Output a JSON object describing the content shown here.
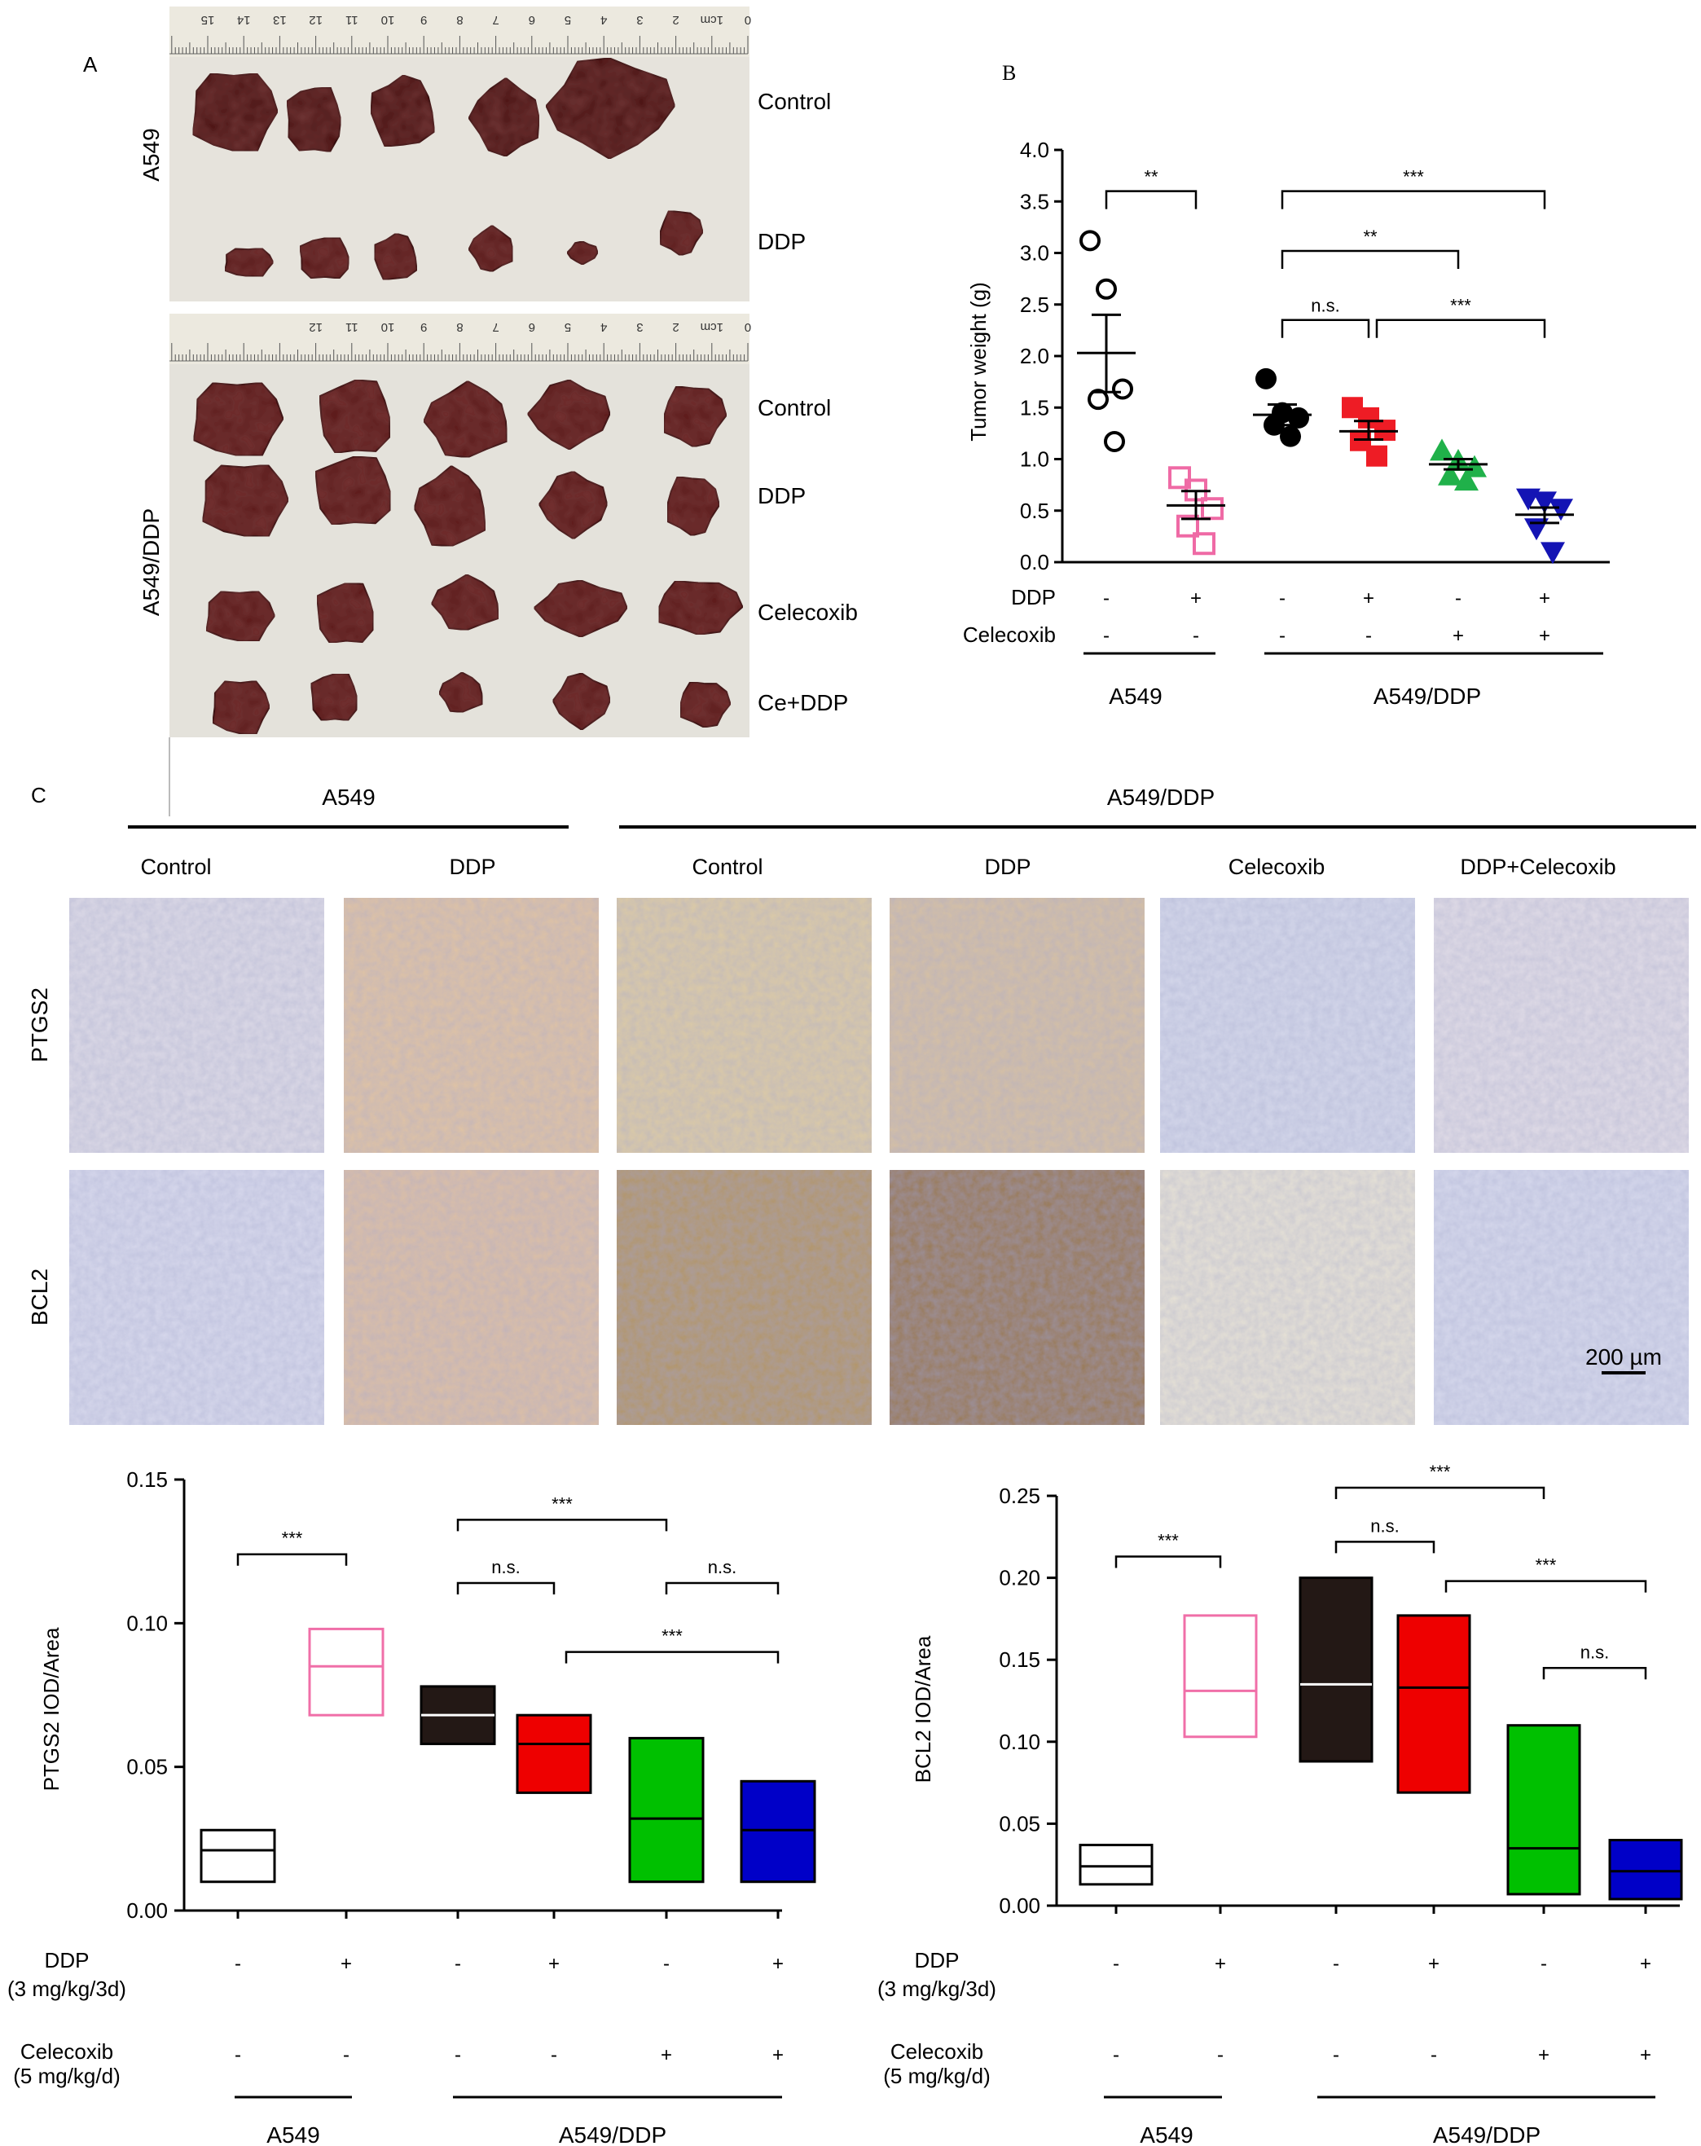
{
  "panels": {
    "a": "A",
    "b": "B",
    "c": "C"
  },
  "photos": {
    "a549_label": "A549",
    "a549ddp_label": "A549/DDP",
    "a549_rows": [
      "Control",
      "DDP"
    ],
    "a549ddp_rows": [
      "Control",
      "DDP",
      "Celecoxib",
      "Ce+DDP"
    ],
    "ruler_top": [
      "15",
      "14",
      "13",
      "12",
      "11",
      "10",
      "9",
      "8",
      "7",
      "6",
      "5",
      "4",
      "3",
      "2",
      "1cm",
      "0"
    ],
    "ruler_bottom": [
      "12",
      "11",
      "10",
      "9",
      "8",
      "7",
      "6",
      "5",
      "4",
      "3",
      "2",
      "1cm",
      "0"
    ]
  },
  "ihc": {
    "group_labels": [
      "A549",
      "A549/DDP"
    ],
    "columns": [
      "Control",
      "DDP",
      "Control",
      "DDP",
      "Celecoxib",
      "DDP+Celecoxib"
    ],
    "rows": [
      "PTGS2",
      "BCL2"
    ],
    "scale_bar": "200 µm"
  },
  "chart_data": [
    {
      "type": "scatter",
      "panel": "B",
      "ylabel": "Tumor weight (g)",
      "ylim": [
        0,
        4.0
      ],
      "yticks": [
        "0.0",
        "0.5",
        "1.0",
        "1.5",
        "2.0",
        "2.5",
        "3.0",
        "3.5",
        "4.0"
      ],
      "condition_rows": [
        {
          "label": "DDP",
          "values": [
            "-",
            "+",
            "-",
            "+",
            "-",
            "+"
          ]
        },
        {
          "label": "Celecoxib",
          "values": [
            "-",
            "-",
            "-",
            "-",
            "+",
            "+"
          ]
        }
      ],
      "groups": [
        {
          "label": "A549",
          "span": [
            0,
            1
          ]
        },
        {
          "label": "A549/DDP",
          "span": [
            2,
            5
          ]
        }
      ],
      "series": [
        {
          "marker": "open-circle",
          "color": "#000000",
          "points": [
            3.12,
            2.65,
            1.68,
            1.58,
            1.17
          ],
          "mean": 2.03,
          "sem_low": 1.65,
          "sem_high": 2.4
        },
        {
          "marker": "open-square",
          "color": "#ef6aa5",
          "points": [
            0.82,
            0.7,
            0.52,
            0.35,
            0.18
          ],
          "mean": 0.55,
          "sem_low": 0.42,
          "sem_high": 0.69
        },
        {
          "marker": "filled-circle",
          "color": "#000000",
          "points": [
            1.78,
            1.45,
            1.4,
            1.33,
            1.22
          ],
          "mean": 1.43,
          "sem_low": 1.33,
          "sem_high": 1.53
        },
        {
          "marker": "filled-square",
          "color": "#ee1c25",
          "points": [
            1.5,
            1.4,
            1.28,
            1.18,
            1.03
          ],
          "mean": 1.27,
          "sem_low": 1.19,
          "sem_high": 1.37
        },
        {
          "marker": "filled-triangle",
          "color": "#20b14a",
          "points": [
            1.08,
            0.98,
            0.92,
            0.84,
            0.79
          ],
          "mean": 0.95,
          "sem_low": 0.9,
          "sem_high": 1.0
        },
        {
          "marker": "filled-triangle-down",
          "color": "#1414b4",
          "points": [
            0.62,
            0.59,
            0.52,
            0.33,
            0.1
          ],
          "mean": 0.46,
          "sem_low": 0.38,
          "sem_high": 0.53
        }
      ],
      "brackets": [
        {
          "from": 0,
          "to": 1,
          "y": 3.6,
          "label": "**"
        },
        {
          "from": 2,
          "to": 5,
          "y": 3.6,
          "label": "***"
        },
        {
          "from": 2,
          "to": 4,
          "y": 3.02,
          "label": "**"
        },
        {
          "from": 2,
          "to": 3,
          "y": 2.35,
          "label": "n.s."
        },
        {
          "from": 3,
          "to": 5,
          "y": 2.35,
          "label": "***"
        }
      ]
    },
    {
      "type": "box",
      "panel": "C-left",
      "ylabel": "PTGS2 IOD/Area",
      "ylim": [
        0,
        0.15
      ],
      "yticks": [
        "0.00",
        "0.05",
        "0.10",
        "0.15"
      ],
      "condition_rows": [
        {
          "label": "DDP",
          "sublabel": "(3 mg/kg/3d)",
          "values": [
            "-",
            "+",
            "-",
            "+",
            "-",
            "+"
          ]
        },
        {
          "label": "Celecoxib",
          "sublabel": "(5 mg/kg/d)",
          "values": [
            "-",
            "-",
            "-",
            "-",
            "+",
            "+"
          ]
        }
      ],
      "groups": [
        {
          "label": "A549",
          "span": [
            0,
            1
          ]
        },
        {
          "label": "A549/DDP",
          "span": [
            2,
            5
          ]
        }
      ],
      "boxes": [
        {
          "low": 0.01,
          "median": 0.021,
          "high": 0.028,
          "fill": "#ffffff",
          "stroke": "#000000",
          "median_color": "#000000"
        },
        {
          "low": 0.068,
          "median": 0.085,
          "high": 0.098,
          "fill": "#ffffff",
          "stroke": "#f06fa8",
          "median_color": "#f06fa8"
        },
        {
          "low": 0.058,
          "median": 0.068,
          "high": 0.078,
          "fill": "#231815",
          "stroke": "#000000",
          "median_color": "#ffffff"
        },
        {
          "low": 0.041,
          "median": 0.058,
          "high": 0.068,
          "fill": "#ee0000",
          "stroke": "#000000",
          "median_color": "#000000"
        },
        {
          "low": 0.01,
          "median": 0.032,
          "high": 0.06,
          "fill": "#00c000",
          "stroke": "#000000",
          "median_color": "#000000"
        },
        {
          "low": 0.01,
          "median": 0.028,
          "high": 0.045,
          "fill": "#0000c8",
          "stroke": "#000000",
          "median_color": "#000000"
        }
      ],
      "brackets": [
        {
          "from": 0,
          "to": 1,
          "y": 0.124,
          "label": "***"
        },
        {
          "from": 2,
          "to": 4,
          "y": 0.136,
          "label": "***"
        },
        {
          "from": 2,
          "to": 3,
          "y": 0.114,
          "label": "n.s."
        },
        {
          "from": 4,
          "to": 5,
          "y": 0.114,
          "label": "n.s."
        },
        {
          "from": 3,
          "to": 5,
          "y": 0.09,
          "label": "***"
        }
      ]
    },
    {
      "type": "box",
      "panel": "C-right",
      "ylabel": "BCL2 IOD/Area",
      "ylim": [
        0,
        0.25
      ],
      "yticks": [
        "0.00",
        "0.05",
        "0.10",
        "0.15",
        "0.20",
        "0.25"
      ],
      "condition_rows": [
        {
          "label": "DDP",
          "sublabel": "(3 mg/kg/3d)",
          "values": [
            "-",
            "+",
            "-",
            "+",
            "-",
            "+"
          ]
        },
        {
          "label": "Celecoxib",
          "sublabel": "(5 mg/kg/d)",
          "values": [
            "-",
            "-",
            "-",
            "-",
            "+",
            "+"
          ]
        }
      ],
      "groups": [
        {
          "label": "A549",
          "span": [
            0,
            1
          ]
        },
        {
          "label": "A549/DDP",
          "span": [
            2,
            5
          ]
        }
      ],
      "boxes": [
        {
          "low": 0.013,
          "median": 0.024,
          "high": 0.037,
          "fill": "#ffffff",
          "stroke": "#000000",
          "median_color": "#000000"
        },
        {
          "low": 0.103,
          "median": 0.131,
          "high": 0.177,
          "fill": "#ffffff",
          "stroke": "#f06fa8",
          "median_color": "#f06fa8"
        },
        {
          "low": 0.088,
          "median": 0.135,
          "high": 0.2,
          "fill": "#231815",
          "stroke": "#000000",
          "median_color": "#ffffff"
        },
        {
          "low": 0.069,
          "median": 0.133,
          "high": 0.177,
          "fill": "#ee0000",
          "stroke": "#000000",
          "median_color": "#000000"
        },
        {
          "low": 0.007,
          "median": 0.035,
          "high": 0.11,
          "fill": "#00c000",
          "stroke": "#000000",
          "median_color": "#000000"
        },
        {
          "low": 0.004,
          "median": 0.021,
          "high": 0.04,
          "fill": "#0000c8",
          "stroke": "#000000",
          "median_color": "#000000"
        }
      ],
      "brackets": [
        {
          "from": 0,
          "to": 1,
          "y": 0.213,
          "label": "***"
        },
        {
          "from": 2,
          "to": 4,
          "y": 0.255,
          "label": "***"
        },
        {
          "from": 2,
          "to": 3,
          "y": 0.222,
          "label": "n.s."
        },
        {
          "from": 3,
          "to": 5,
          "y": 0.198,
          "label": "***"
        },
        {
          "from": 4,
          "to": 5,
          "y": 0.145,
          "label": "n.s."
        }
      ]
    }
  ]
}
